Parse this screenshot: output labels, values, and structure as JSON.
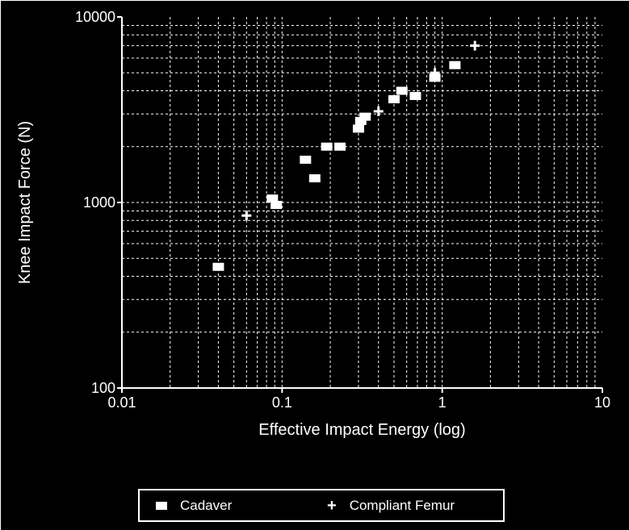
{
  "chart_data": {
    "type": "scatter",
    "xlabel": "Effective Impact Energy (log)",
    "ylabel": "Knee Impact Force (N)",
    "x_scale": "log",
    "y_scale": "log",
    "xlim": [
      0.01,
      10
    ],
    "ylim": [
      100,
      10000
    ],
    "x_ticks": [
      "0.01",
      "0.1",
      "1",
      "10"
    ],
    "y_ticks": [
      "100",
      "1000",
      "10000"
    ],
    "grid": true,
    "legend_position": "bottom",
    "colors": {
      "background": "#000000",
      "foreground": "#ffffff"
    },
    "series": [
      {
        "name": "Cadaver",
        "marker": "square",
        "points": [
          {
            "x": 0.04,
            "y": 450
          },
          {
            "x": 0.087,
            "y": 1050
          },
          {
            "x": 0.092,
            "y": 970
          },
          {
            "x": 0.14,
            "y": 1700
          },
          {
            "x": 0.16,
            "y": 1350
          },
          {
            "x": 0.19,
            "y": 2000
          },
          {
            "x": 0.23,
            "y": 2000
          },
          {
            "x": 0.3,
            "y": 2500
          },
          {
            "x": 0.31,
            "y": 2750
          },
          {
            "x": 0.33,
            "y": 2900
          },
          {
            "x": 0.5,
            "y": 3600
          },
          {
            "x": 0.56,
            "y": 4000
          },
          {
            "x": 0.68,
            "y": 3750
          },
          {
            "x": 0.9,
            "y": 4700
          },
          {
            "x": 1.2,
            "y": 5500
          }
        ]
      },
      {
        "name": "Compliant Femur",
        "marker": "plus",
        "points": [
          {
            "x": 0.06,
            "y": 850
          },
          {
            "x": 0.4,
            "y": 3100
          },
          {
            "x": 0.9,
            "y": 5000
          },
          {
            "x": 1.6,
            "y": 7000
          }
        ]
      }
    ]
  },
  "legend": {
    "items": [
      {
        "label": "Cadaver"
      },
      {
        "label": "Compliant Femur"
      }
    ]
  }
}
